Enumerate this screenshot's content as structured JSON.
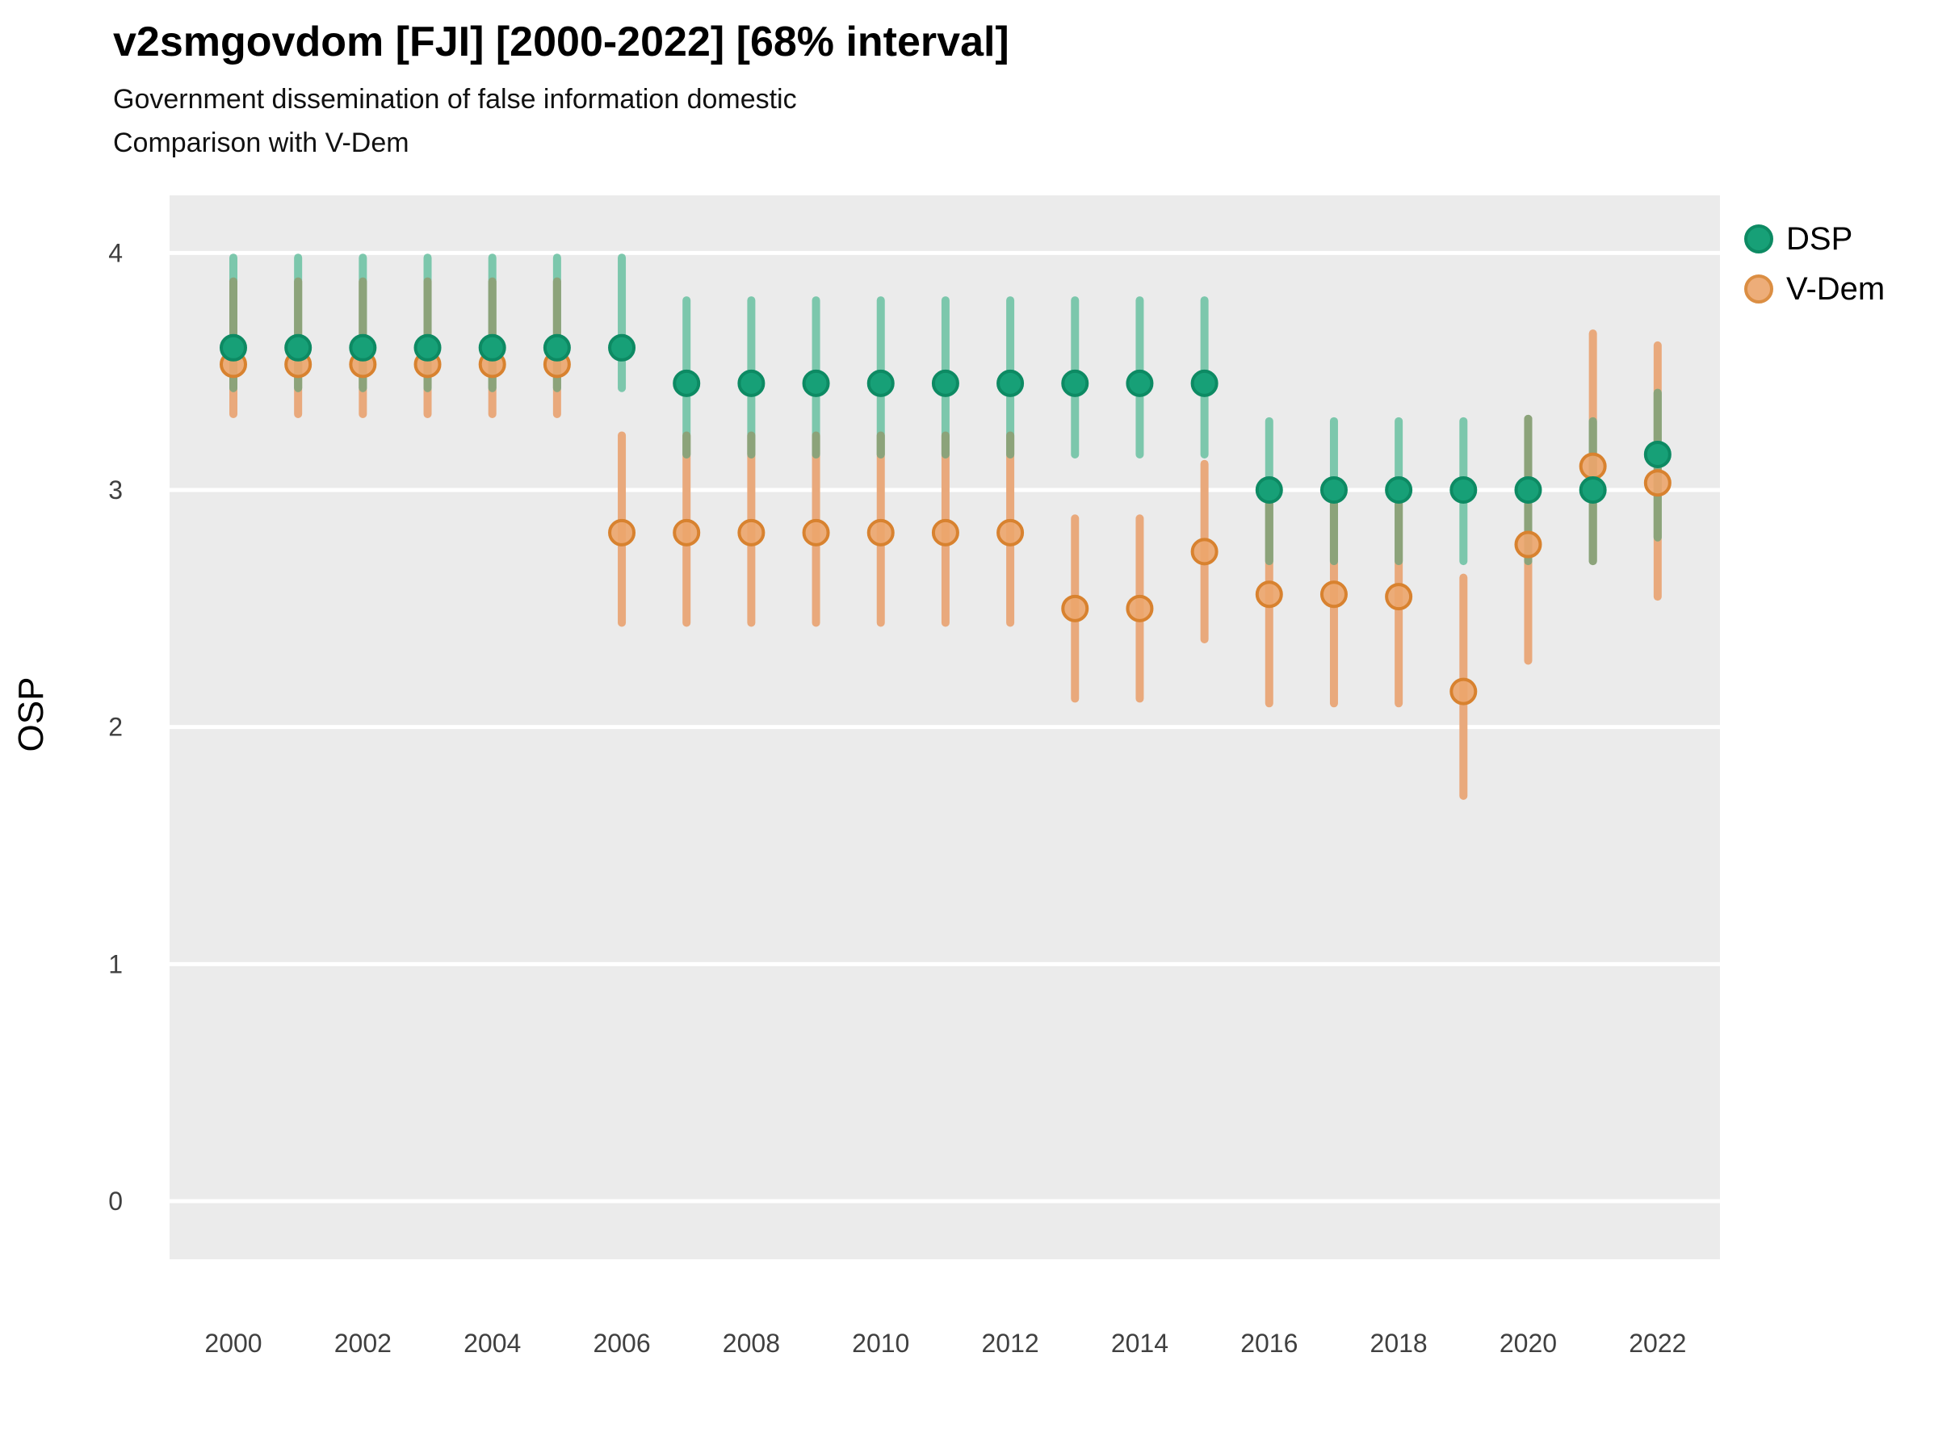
{
  "page": {
    "title": "v2smgovdom [FJI] [2000-2022] [68% interval]",
    "subtitle1": "Government dissemination of false information domestic",
    "subtitle2": "Comparison with V-Dem"
  },
  "chart_data": {
    "type": "pointrange",
    "title": "v2smgovdom [FJI] [2000-2022] [68% interval]",
    "subtitle": [
      "Government dissemination of false information domestic",
      "Comparison with V-Dem"
    ],
    "interval": "68% interval",
    "xlabel": "",
    "ylabel": "OSP",
    "ylim": [
      -0.25,
      4.25
    ],
    "yticks": [
      0,
      1,
      2,
      3,
      4
    ],
    "xticks": [
      2000,
      2002,
      2004,
      2006,
      2008,
      2010,
      2012,
      2014,
      2016,
      2018,
      2020,
      2022
    ],
    "grid": "horizontal major gridlines, white on grey panel",
    "legend_position": "right-top",
    "years": [
      2000,
      2001,
      2002,
      2003,
      2004,
      2005,
      2006,
      2007,
      2008,
      2009,
      2010,
      2011,
      2012,
      2013,
      2014,
      2015,
      2016,
      2017,
      2018,
      2019,
      2020,
      2021,
      2022
    ],
    "colors": {
      "panel": "#EBEBEB",
      "grid": "#FFFFFF",
      "overlap": "#8CA37A"
    },
    "series": [
      {
        "name": "DSP",
        "point_color": "#17A077",
        "point_stroke": "#0D8A63",
        "bar_color": "#7CC7AC",
        "values": [
          3.6,
          3.6,
          3.6,
          3.6,
          3.6,
          3.6,
          3.6,
          3.45,
          3.45,
          3.45,
          3.45,
          3.45,
          3.45,
          3.45,
          3.45,
          3.45,
          3.0,
          3.0,
          3.0,
          3.0,
          3.0,
          3.0,
          3.15
        ],
        "lo": [
          3.43,
          3.43,
          3.43,
          3.43,
          3.43,
          3.43,
          3.43,
          3.15,
          3.15,
          3.15,
          3.15,
          3.15,
          3.15,
          3.15,
          3.15,
          3.15,
          2.7,
          2.7,
          2.7,
          2.7,
          2.7,
          2.7,
          2.8
        ],
        "hi": [
          3.98,
          3.98,
          3.98,
          3.98,
          3.98,
          3.98,
          3.98,
          3.8,
          3.8,
          3.8,
          3.8,
          3.8,
          3.8,
          3.8,
          3.8,
          3.8,
          3.29,
          3.29,
          3.29,
          3.29,
          3.3,
          3.29,
          3.41
        ]
      },
      {
        "name": "V-Dem",
        "point_color": "#ECA56B",
        "point_stroke": "#D8822F",
        "bar_color": "#E9A97C",
        "values": [
          3.53,
          3.53,
          3.53,
          3.53,
          3.53,
          3.53,
          2.82,
          2.82,
          2.82,
          2.82,
          2.82,
          2.82,
          2.82,
          2.5,
          2.5,
          2.74,
          2.56,
          2.56,
          2.55,
          2.15,
          2.77,
          3.1,
          3.03
        ],
        "lo": [
          3.32,
          3.32,
          3.32,
          3.32,
          3.32,
          3.32,
          2.44,
          2.44,
          2.44,
          2.44,
          2.44,
          2.44,
          2.44,
          2.12,
          2.12,
          2.37,
          2.1,
          2.1,
          2.1,
          1.71,
          2.28,
          2.7,
          2.55
        ],
        "hi": [
          3.88,
          3.88,
          3.88,
          3.88,
          3.88,
          3.88,
          3.23,
          3.23,
          3.23,
          3.23,
          3.23,
          3.23,
          3.23,
          2.88,
          2.88,
          3.11,
          2.95,
          2.95,
          2.95,
          2.63,
          3.3,
          3.66,
          3.61
        ]
      }
    ]
  }
}
